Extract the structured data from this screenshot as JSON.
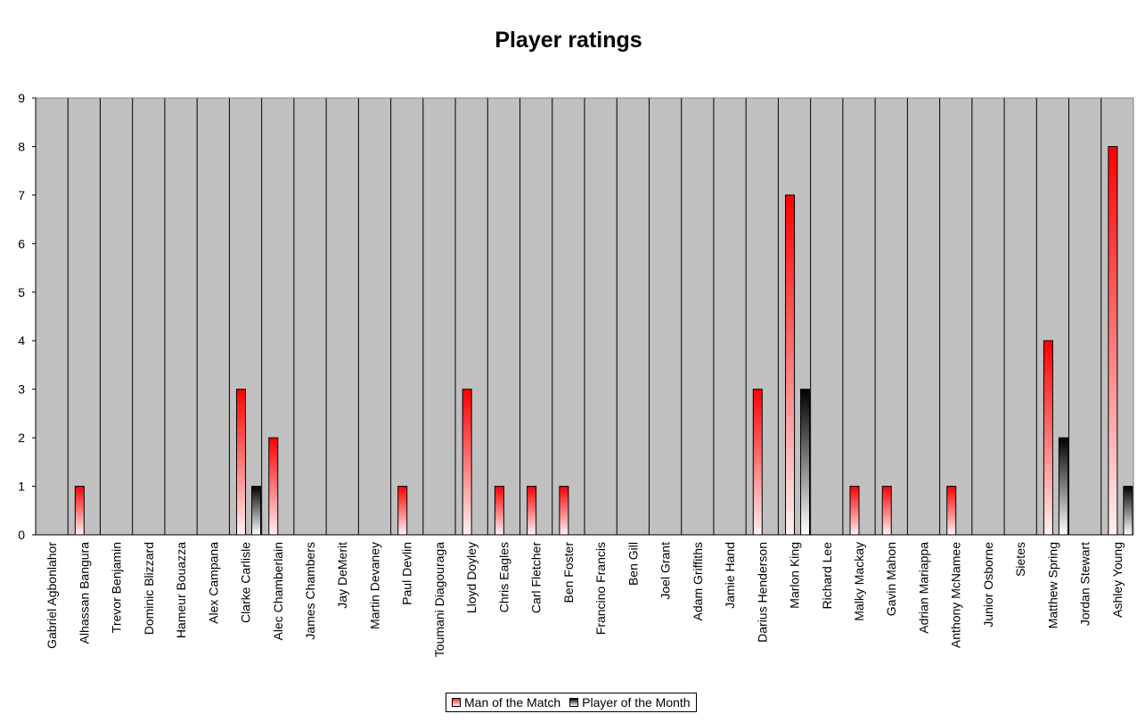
{
  "chart_data": {
    "type": "bar",
    "title": "Player ratings",
    "xlabel": "",
    "ylabel": "",
    "ylim": [
      0,
      9
    ],
    "yticks": [
      "0",
      "1",
      "2",
      "3",
      "4",
      "5",
      "6",
      "7",
      "8",
      "9"
    ],
    "grid": "vertical category separators",
    "legend_position": "bottom",
    "categories": [
      "Gabriel Agbonlahor",
      "Alhassan Bangura",
      "Trevor Benjamin",
      "Dominic Blizzard",
      "Hameur Bouazza",
      "Alex Campana",
      "Clarke Carlisle",
      "Alec Chamberlain",
      "James Chambers",
      "Jay DeMerit",
      "Martin Devaney",
      "Paul Devlin",
      "Toumani Diagouraga",
      "Lloyd Doyley",
      "Chris Eagles",
      "Carl Fletcher",
      "Ben Foster",
      "Francino Francis",
      "Ben Gill",
      "Joel Grant",
      "Adam Griffiths",
      "Jamie Hand",
      "Darius Henderson",
      "Marlon King",
      "Richard Lee",
      "Malky Mackay",
      "Gavin Mahon",
      "Adrian Mariappa",
      "Anthony McNamee",
      "Junior Osborne",
      "Sietes",
      "Matthew Spring",
      "Jordan Stewart",
      "Ashley Young"
    ],
    "series": [
      {
        "name": "Man of the Match",
        "color": "#ff0000",
        "values": [
          0,
          1,
          0,
          0,
          0,
          0,
          3,
          2,
          0,
          0,
          0,
          1,
          0,
          3,
          1,
          1,
          1,
          0,
          0,
          0,
          0,
          0,
          3,
          7,
          0,
          1,
          1,
          0,
          1,
          0,
          0,
          4,
          0,
          8
        ]
      },
      {
        "name": "Player of the Month",
        "color": "#000000",
        "values": [
          0,
          0,
          0,
          0,
          0,
          0,
          1,
          0,
          0,
          0,
          0,
          0,
          0,
          0,
          0,
          0,
          0,
          0,
          0,
          0,
          0,
          0,
          0,
          3,
          0,
          0,
          0,
          0,
          0,
          0,
          0,
          2,
          0,
          1
        ]
      }
    ],
    "plot_background": "#c0c0c0"
  }
}
